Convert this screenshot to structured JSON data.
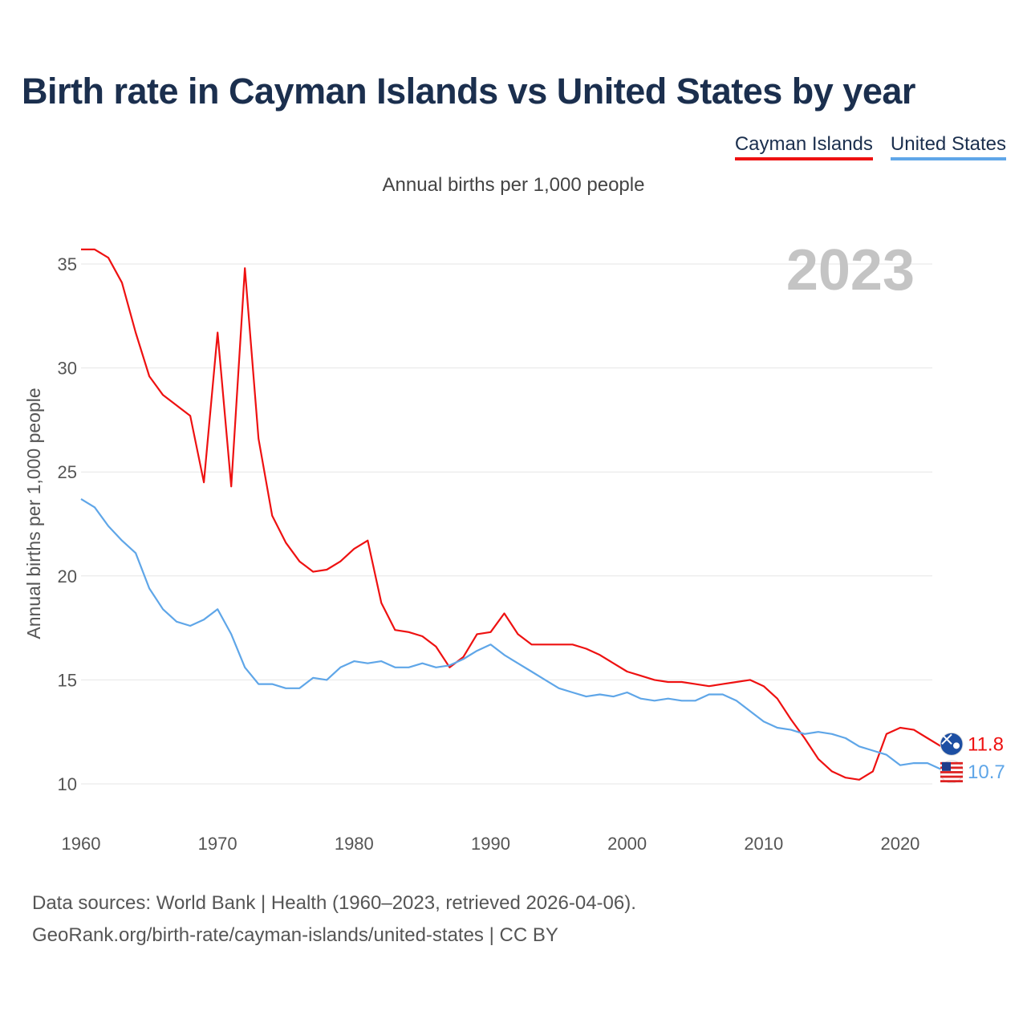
{
  "title": "Birth rate in Cayman Islands vs United States by year",
  "subtitle": "Annual births per 1,000 people",
  "footer": {
    "line1": "Data sources: World Bank | Health (1960–2023, retrieved 2026-04-06).",
    "line2": "GeoRank.org/birth-rate/cayman-islands/united-states | CC BY"
  },
  "colors": {
    "cayman": "#ee1111",
    "us": "#5fa6e8",
    "grid": "#e6e6e6",
    "title": "#1b2f4e"
  },
  "chart_data": {
    "type": "line",
    "title": "Birth rate in Cayman Islands vs United States by year",
    "ylabel": "Annual births per 1,000 people",
    "xlabel": "",
    "year_label": "2023",
    "xlim": [
      1960,
      2023
    ],
    "ylim": [
      8,
      37
    ],
    "yticks": [
      10,
      15,
      20,
      25,
      30,
      35
    ],
    "xticks": [
      1960,
      1970,
      1980,
      1990,
      2000,
      2010,
      2020
    ],
    "legend": "top-right",
    "x": [
      1960,
      1961,
      1962,
      1963,
      1964,
      1965,
      1966,
      1967,
      1968,
      1969,
      1970,
      1971,
      1972,
      1973,
      1974,
      1975,
      1976,
      1977,
      1978,
      1979,
      1980,
      1981,
      1982,
      1983,
      1984,
      1985,
      1986,
      1987,
      1988,
      1989,
      1990,
      1991,
      1992,
      1993,
      1994,
      1995,
      1996,
      1997,
      1998,
      1999,
      2000,
      2001,
      2002,
      2003,
      2004,
      2005,
      2006,
      2007,
      2008,
      2009,
      2010,
      2011,
      2012,
      2013,
      2014,
      2015,
      2016,
      2017,
      2018,
      2019,
      2020,
      2021,
      2022,
      2023
    ],
    "series": [
      {
        "name": "Cayman Islands",
        "end_label": "11.8",
        "values": [
          35.7,
          35.7,
          35.3,
          34.1,
          31.7,
          29.6,
          28.7,
          28.2,
          27.7,
          24.5,
          31.7,
          24.3,
          34.8,
          26.6,
          22.9,
          21.6,
          20.7,
          20.2,
          20.3,
          20.7,
          21.3,
          21.7,
          18.7,
          17.4,
          17.3,
          17.1,
          16.6,
          15.6,
          16.1,
          17.2,
          17.3,
          18.2,
          17.2,
          16.7,
          16.7,
          16.7,
          16.7,
          16.5,
          16.2,
          15.8,
          15.4,
          15.2,
          15.0,
          14.9,
          14.9,
          14.8,
          14.7,
          14.8,
          14.9,
          15.0,
          14.7,
          14.1,
          13.1,
          12.2,
          11.2,
          10.6,
          10.3,
          10.2,
          10.6,
          12.4,
          12.7,
          12.6,
          12.2,
          11.8
        ]
      },
      {
        "name": "United States",
        "end_label": "10.7",
        "values": [
          23.7,
          23.3,
          22.4,
          21.7,
          21.1,
          19.4,
          18.4,
          17.8,
          17.6,
          17.9,
          18.4,
          17.2,
          15.6,
          14.8,
          14.8,
          14.6,
          14.6,
          15.1,
          15.0,
          15.6,
          15.9,
          15.8,
          15.9,
          15.6,
          15.6,
          15.8,
          15.6,
          15.7,
          16.0,
          16.4,
          16.7,
          16.2,
          15.8,
          15.4,
          15.0,
          14.6,
          14.4,
          14.2,
          14.3,
          14.2,
          14.4,
          14.1,
          14.0,
          14.1,
          14.0,
          14.0,
          14.3,
          14.3,
          14.0,
          13.5,
          13.0,
          12.7,
          12.6,
          12.4,
          12.5,
          12.4,
          12.2,
          11.8,
          11.6,
          11.4,
          10.9,
          11.0,
          11.0,
          10.7
        ]
      }
    ]
  }
}
